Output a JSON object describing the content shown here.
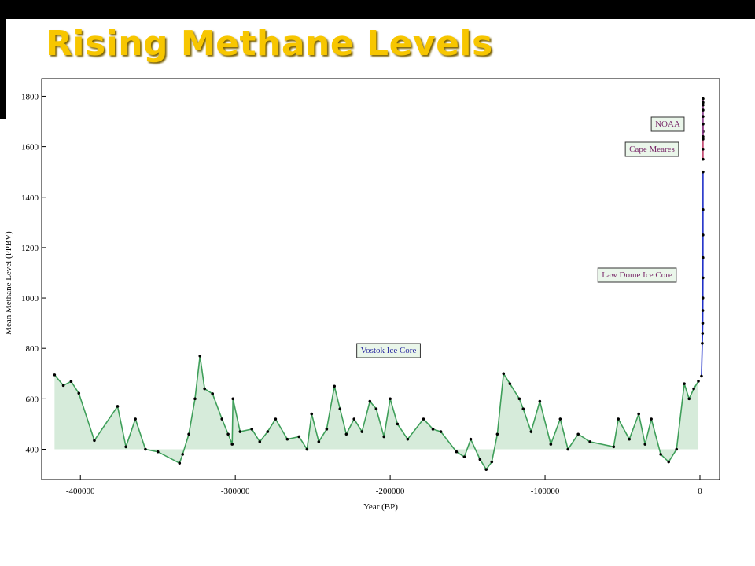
{
  "title": "Rising Methane Levels",
  "chart_data": {
    "type": "line",
    "xlabel": "Year (BP)",
    "ylabel": "Mean Methane Level (PPBV)",
    "xlim": [
      -425000,
      12700
    ],
    "ylim": [
      280,
      1870
    ],
    "xticks": [
      -400000,
      -300000,
      -200000,
      -100000,
      0
    ],
    "yticks": [
      400,
      600,
      800,
      1000,
      1200,
      1400,
      1600,
      1800
    ],
    "fill_to": 400,
    "fill_color": "#d6ebda",
    "point_color": "#000000",
    "series": [
      {
        "name": "Vostok Ice Core",
        "color": "#3f9f5a",
        "label_color": "#2a2aa0",
        "x": [
          -416700,
          -411000,
          -406000,
          -401000,
          -391000,
          -376000,
          -370600,
          -364500,
          -358000,
          -350000,
          -336000,
          -334000,
          -330000,
          -326000,
          -322800,
          -319800,
          -314700,
          -308600,
          -304600,
          -302000,
          -301500,
          -296900,
          -289300,
          -284200,
          -279100,
          -274000,
          -266400,
          -258800,
          -253700,
          -250700,
          -246100,
          -241000,
          -236000,
          -232400,
          -228300,
          -223300,
          -218200,
          -213100,
          -209000,
          -204000,
          -200000,
          -195300,
          -188700,
          -178500,
          -172400,
          -167300,
          -157200,
          -152100,
          -148000,
          -142000,
          -138000,
          -134400,
          -130800,
          -126800,
          -122700,
          -116600,
          -114100,
          -109000,
          -103400,
          -96300,
          -90200,
          -85200,
          -78600,
          -71000,
          -55700,
          -52700,
          -45600,
          -39500,
          -35400,
          -31400,
          -25300,
          -20200,
          -15100,
          -10100,
          -7000,
          -4000,
          -1000
        ],
        "values": [
          695,
          653,
          669,
          622,
          435,
          570,
          410,
          520,
          400,
          390,
          345,
          380,
          460,
          600,
          770,
          640,
          620,
          520,
          460,
          420,
          600,
          470,
          480,
          430,
          470,
          520,
          440,
          450,
          400,
          540,
          430,
          480,
          650,
          560,
          460,
          520,
          470,
          590,
          560,
          450,
          600,
          500,
          440,
          520,
          480,
          470,
          390,
          370,
          440,
          360,
          320,
          350,
          460,
          700,
          660,
          600,
          560,
          470,
          590,
          420,
          520,
          400,
          460,
          430,
          410,
          520,
          440,
          540,
          420,
          520,
          380,
          350,
          400,
          660,
          600,
          640,
          670
        ]
      },
      {
        "name": "Law Dome Ice Core",
        "color": "#2030c8",
        "label_color": "#7a2a6a",
        "x": [
          1000,
          1500,
          1700,
          1800,
          1850,
          1900,
          1930,
          1950,
          1960,
          1970,
          1980
        ],
        "values": [
          690,
          820,
          860,
          900,
          950,
          1000,
          1080,
          1160,
          1250,
          1350,
          1500
        ]
      },
      {
        "name": "Cape Meares",
        "color": "#c0406a",
        "label_color": "#7a2a6a",
        "x": [
          1980,
          1983,
          1986,
          1989,
          1992
        ],
        "values": [
          1550,
          1590,
          1630,
          1660,
          1690
        ]
      },
      {
        "name": "NOAA",
        "color": "#8a3a8a",
        "label_color": "#7a2a6a",
        "x": [
          1984,
          1988,
          1992,
          1996,
          2000,
          2004,
          2008
        ],
        "values": [
          1640,
          1690,
          1720,
          1745,
          1765,
          1775,
          1790
        ]
      }
    ]
  }
}
